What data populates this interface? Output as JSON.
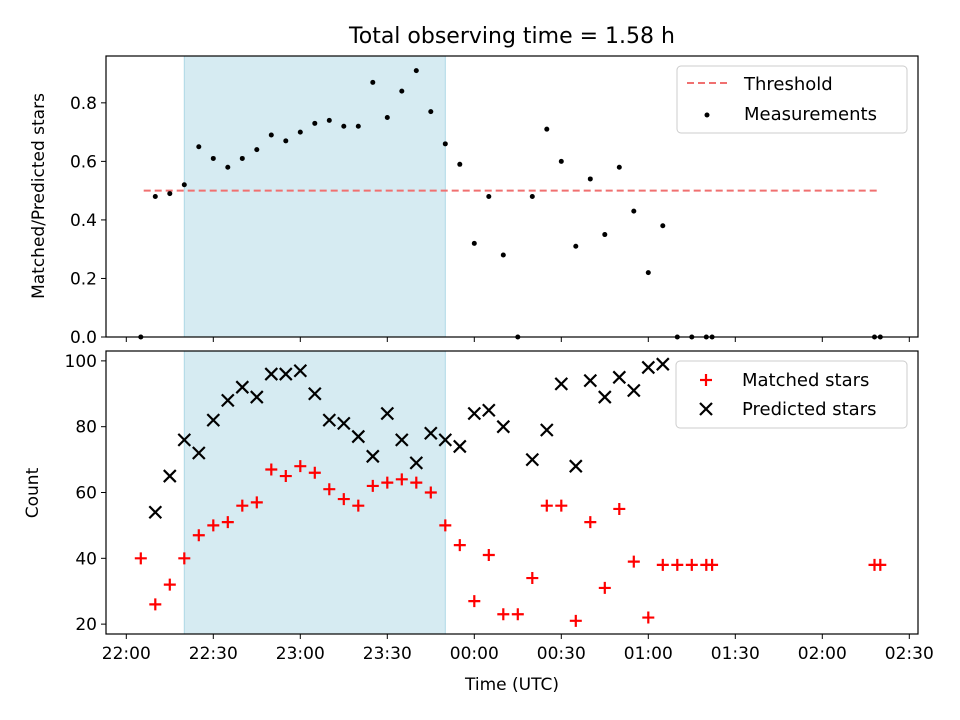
{
  "chart_data": [
    {
      "type": "scatter",
      "title": "Total observing time = 1.58 h",
      "xlabel": "",
      "ylabel": "Matched/Predicted stars",
      "ylim": [
        0,
        0.96
      ],
      "yticks": [
        "0.0",
        "0.2",
        "0.4",
        "0.6",
        "0.8"
      ],
      "ytick_values": [
        0,
        0.2,
        0.4,
        0.6,
        0.8
      ],
      "xlim": [
        "21:53",
        "02:33"
      ],
      "shaded_span": [
        "22:20",
        "23:50"
      ],
      "threshold": {
        "name": "Threshold",
        "value": 0.5,
        "x_range": [
          "22:06",
          "02:20"
        ],
        "color": "#f07070"
      },
      "series": [
        {
          "name": "Measurements",
          "color": "#000000",
          "x": [
            "22:05",
            "22:10",
            "22:15",
            "22:20",
            "22:25",
            "22:30",
            "22:35",
            "22:40",
            "22:45",
            "22:50",
            "22:55",
            "23:00",
            "23:05",
            "23:10",
            "23:15",
            "23:20",
            "23:25",
            "23:30",
            "23:35",
            "23:40",
            "23:45",
            "23:50",
            "23:55",
            "00:00",
            "00:05",
            "00:10",
            "00:15",
            "00:20",
            "00:25",
            "00:30",
            "00:35",
            "00:40",
            "00:45",
            "00:50",
            "00:55",
            "01:00",
            "01:05",
            "01:10",
            "01:15",
            "01:20",
            "01:22",
            "02:18",
            "02:20"
          ],
          "values": [
            0.0,
            0.48,
            0.49,
            0.52,
            0.65,
            0.61,
            0.58,
            0.61,
            0.64,
            0.69,
            0.67,
            0.7,
            0.73,
            0.74,
            0.72,
            0.72,
            0.87,
            0.75,
            0.84,
            0.91,
            0.77,
            0.66,
            0.59,
            0.32,
            0.48,
            0.28,
            0.0,
            0.48,
            0.71,
            0.6,
            0.31,
            0.54,
            0.35,
            0.58,
            0.43,
            0.22,
            0.38,
            0.0,
            0.0,
            0.0,
            0.0,
            0.0,
            0.0
          ]
        }
      ],
      "legend": "top-right"
    },
    {
      "type": "scatter",
      "title": "",
      "xlabel": "Time (UTC)",
      "ylabel": "Count",
      "ylim": [
        17,
        103
      ],
      "yticks": [
        "20",
        "40",
        "60",
        "80",
        "100"
      ],
      "ytick_values": [
        20,
        40,
        60,
        80,
        100
      ],
      "xlim": [
        "21:53",
        "02:33"
      ],
      "xticks": [
        "22:00",
        "22:30",
        "23:00",
        "23:30",
        "00:00",
        "00:30",
        "01:00",
        "01:30",
        "02:00",
        "02:30"
      ],
      "shaded_span": [
        "22:20",
        "23:50"
      ],
      "series": [
        {
          "name": "Matched stars",
          "marker": "+",
          "color": "#ff0000",
          "x": [
            "22:05",
            "22:10",
            "22:15",
            "22:20",
            "22:25",
            "22:30",
            "22:35",
            "22:40",
            "22:45",
            "22:50",
            "22:55",
            "23:00",
            "23:05",
            "23:10",
            "23:15",
            "23:20",
            "23:25",
            "23:30",
            "23:35",
            "23:40",
            "23:45",
            "23:50",
            "23:55",
            "00:00",
            "00:05",
            "00:10",
            "00:15",
            "00:20",
            "00:25",
            "00:30",
            "00:35",
            "00:40",
            "00:45",
            "00:50",
            "00:55",
            "01:00",
            "01:05",
            "01:10",
            "01:15",
            "01:20",
            "01:22",
            "02:18",
            "02:20"
          ],
          "values": [
            40,
            26,
            32,
            40,
            47,
            50,
            51,
            56,
            57,
            67,
            65,
            68,
            66,
            61,
            58,
            56,
            62,
            63,
            64,
            63,
            60,
            50,
            44,
            27,
            41,
            23,
            23,
            34,
            56,
            56,
            21,
            51,
            31,
            55,
            39,
            22,
            38,
            38,
            38,
            38,
            38,
            38,
            38
          ]
        },
        {
          "name": "Predicted stars",
          "marker": "x",
          "color": "#000000",
          "x": [
            "22:10",
            "22:15",
            "22:20",
            "22:25",
            "22:30",
            "22:35",
            "22:40",
            "22:45",
            "22:50",
            "22:55",
            "23:00",
            "23:05",
            "23:10",
            "23:15",
            "23:20",
            "23:25",
            "23:30",
            "23:35",
            "23:40",
            "23:45",
            "23:50",
            "23:55",
            "00:00",
            "00:05",
            "00:10",
            "00:20",
            "00:25",
            "00:30",
            "00:35",
            "00:40",
            "00:45",
            "00:50",
            "00:55",
            "01:00",
            "01:05"
          ],
          "values": [
            54,
            65,
            76,
            72,
            82,
            88,
            92,
            89,
            96,
            96,
            97,
            90,
            82,
            81,
            77,
            71,
            84,
            76,
            69,
            78,
            76,
            74,
            84,
            85,
            80,
            70,
            79,
            93,
            68,
            94,
            89,
            95,
            91,
            98,
            99
          ]
        }
      ],
      "legend": "top-right"
    }
  ]
}
